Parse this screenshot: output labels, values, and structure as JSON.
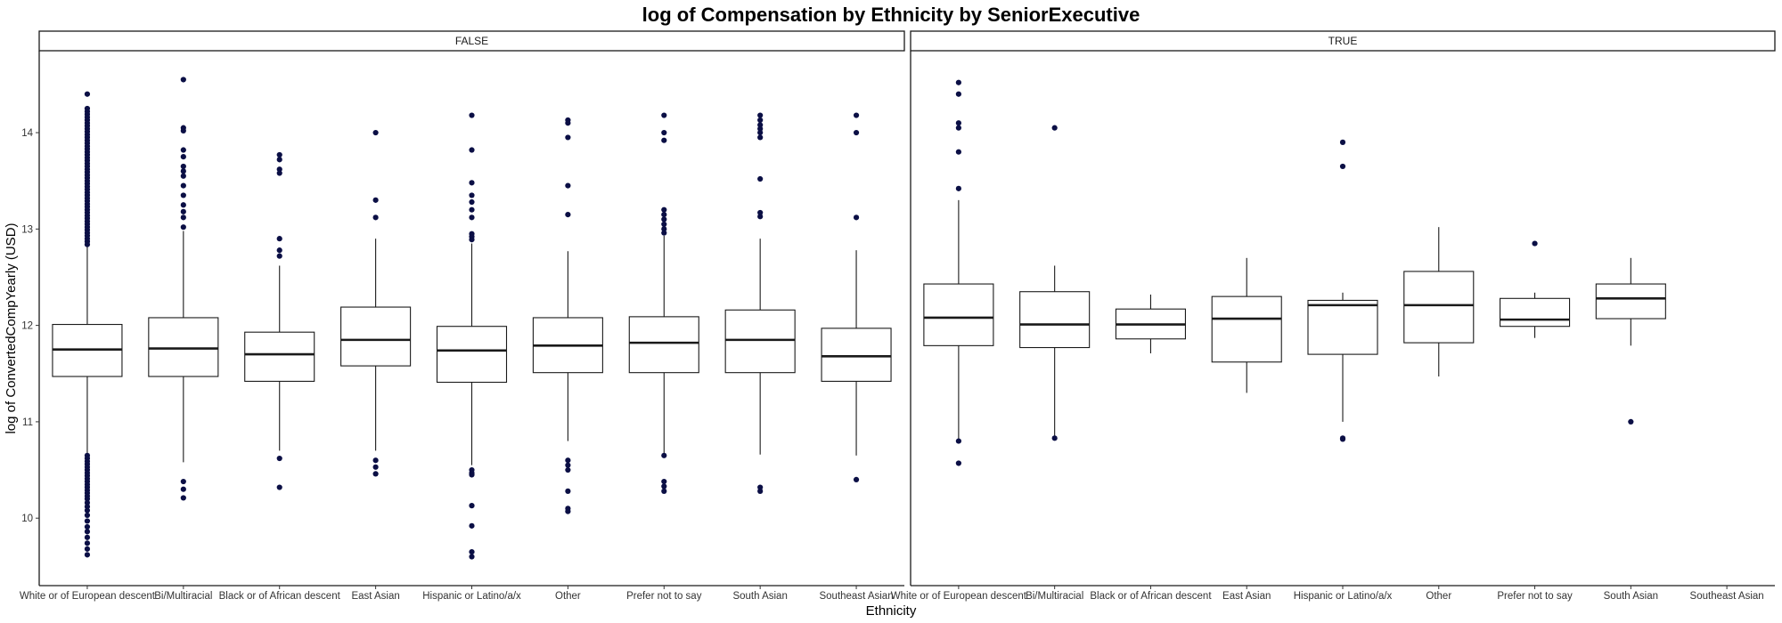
{
  "chart_data": {
    "type": "boxplot",
    "title": "log of Compensation by Ethnicity by SeniorExecutive",
    "xlabel": "Ethnicity",
    "ylabel": "log of ConvertedCompYearly (USD)",
    "ylim": [
      9.3,
      14.85
    ],
    "yticks": [
      "10",
      "11",
      "12",
      "13",
      "14"
    ],
    "categories": [
      "White or of European descent",
      "Bi/Multiracial",
      "Black or of African descent",
      "East Asian",
      "Hispanic or Latino/a/x",
      "Other",
      "Prefer not to say",
      "South Asian",
      "Southeast Asian"
    ],
    "grid": false,
    "legend": "none",
    "colors": {
      "outlier": "#0b0f45",
      "box": "#1a1a1a",
      "strip_fill": "#ffffff"
    },
    "facets": [
      {
        "label": "FALSE",
        "boxes": [
          {
            "category": "White or of European descent",
            "min": 10.67,
            "q1": 11.47,
            "median": 11.75,
            "q3": 12.01,
            "max": 12.82,
            "outliers": [
              14.4,
              14.25,
              14.22,
              14.19,
              14.16,
              14.13,
              14.1,
              14.07,
              14.04,
              14.01,
              13.98,
              13.95,
              13.92,
              13.89,
              13.86,
              13.83,
              13.8,
              13.77,
              13.74,
              13.71,
              13.68,
              13.65,
              13.62,
              13.59,
              13.56,
              13.53,
              13.5,
              13.47,
              13.44,
              13.41,
              13.38,
              13.35,
              13.32,
              13.29,
              13.26,
              13.23,
              13.2,
              13.17,
              13.14,
              13.11,
              13.08,
              13.05,
              13.02,
              12.99,
              12.96,
              12.93,
              12.9,
              12.87,
              12.84,
              10.65,
              10.62,
              10.59,
              10.56,
              10.53,
              10.5,
              10.47,
              10.44,
              10.41,
              10.38,
              10.35,
              10.32,
              10.29,
              10.26,
              10.23,
              10.2,
              10.16,
              10.12,
              10.08,
              10.03,
              9.97,
              9.91,
              9.86,
              9.8,
              9.74,
              9.68,
              9.62
            ]
          },
          {
            "category": "Bi/Multiracial",
            "min": 10.58,
            "q1": 11.47,
            "median": 11.76,
            "q3": 12.08,
            "max": 12.98,
            "outliers": [
              14.55,
              14.05,
              14.02,
              13.82,
              13.75,
              13.65,
              13.6,
              13.55,
              13.45,
              13.35,
              13.25,
              13.18,
              13.12,
              13.02,
              10.38,
              10.3,
              10.21
            ]
          },
          {
            "category": "Black or of African descent",
            "min": 10.7,
            "q1": 11.42,
            "median": 11.7,
            "q3": 11.93,
            "max": 12.62,
            "outliers": [
              13.77,
              13.72,
              13.62,
              13.58,
              12.9,
              12.78,
              12.72,
              10.62,
              10.32
            ]
          },
          {
            "category": "East Asian",
            "min": 10.7,
            "q1": 11.58,
            "median": 11.85,
            "q3": 12.19,
            "max": 12.9,
            "outliers": [
              14.0,
              13.3,
              13.12,
              10.6,
              10.53,
              10.46
            ]
          },
          {
            "category": "Hispanic or Latino/a/x",
            "min": 10.55,
            "q1": 11.41,
            "median": 11.74,
            "q3": 11.99,
            "max": 12.85,
            "outliers": [
              14.18,
              13.82,
              13.48,
              13.35,
              13.28,
              13.2,
              13.12,
              12.95,
              12.92,
              12.89,
              10.5,
              10.47,
              10.45,
              10.13,
              9.92,
              9.65,
              9.6
            ]
          },
          {
            "category": "Other",
            "min": 10.8,
            "q1": 11.51,
            "median": 11.79,
            "q3": 12.08,
            "max": 12.77,
            "outliers": [
              14.13,
              14.1,
              13.95,
              13.45,
              13.15,
              10.6,
              10.55,
              10.5,
              10.28,
              10.1,
              10.07
            ]
          },
          {
            "category": "Prefer not to say",
            "min": 10.67,
            "q1": 11.51,
            "median": 11.82,
            "q3": 12.09,
            "max": 12.93,
            "outliers": [
              14.18,
              14.0,
              13.92,
              13.2,
              13.15,
              13.1,
              13.05,
              13.0,
              12.96,
              10.65,
              10.38,
              10.33,
              10.28
            ]
          },
          {
            "category": "South Asian",
            "min": 10.66,
            "q1": 11.51,
            "median": 11.85,
            "q3": 12.16,
            "max": 12.9,
            "outliers": [
              14.18,
              14.13,
              14.08,
              14.04,
              14.0,
              13.95,
              13.52,
              13.17,
              13.13,
              10.32,
              10.28
            ]
          },
          {
            "category": "Southeast Asian",
            "min": 10.65,
            "q1": 11.42,
            "median": 11.68,
            "q3": 11.97,
            "max": 12.78,
            "outliers": [
              14.18,
              14.0,
              13.12,
              10.4
            ]
          }
        ]
      },
      {
        "label": "TRUE",
        "boxes": [
          {
            "category": "White or of European descent",
            "min": 10.82,
            "q1": 11.79,
            "median": 12.08,
            "q3": 12.43,
            "max": 13.3,
            "outliers": [
              14.52,
              14.4,
              14.1,
              14.05,
              13.8,
              13.42,
              10.8,
              10.57
            ]
          },
          {
            "category": "Bi/Multiracial",
            "min": 10.85,
            "q1": 11.77,
            "median": 12.01,
            "q3": 12.35,
            "max": 12.62,
            "outliers": [
              14.05,
              10.83
            ]
          },
          {
            "category": "Black or of African descent",
            "min": 11.71,
            "q1": 11.86,
            "median": 12.01,
            "q3": 12.17,
            "max": 12.32,
            "outliers": []
          },
          {
            "category": "East Asian",
            "min": 11.3,
            "q1": 11.62,
            "median": 12.07,
            "q3": 12.3,
            "max": 12.7,
            "outliers": []
          },
          {
            "category": "Hispanic or Latino/a/x",
            "min": 11.0,
            "q1": 11.7,
            "median": 12.21,
            "q3": 12.26,
            "max": 12.34,
            "outliers": [
              13.9,
              13.65,
              10.83,
              10.82
            ]
          },
          {
            "category": "Other",
            "min": 11.47,
            "q1": 11.82,
            "median": 12.21,
            "q3": 12.56,
            "max": 13.02,
            "outliers": []
          },
          {
            "category": "Prefer not to say",
            "min": 11.87,
            "q1": 11.99,
            "median": 12.06,
            "q3": 12.28,
            "max": 12.34,
            "outliers": [
              12.85
            ]
          },
          {
            "category": "South Asian",
            "min": 11.79,
            "q1": 12.07,
            "median": 12.28,
            "q3": 12.43,
            "max": 12.7,
            "outliers": [
              11.0
            ]
          }
        ]
      }
    ]
  }
}
